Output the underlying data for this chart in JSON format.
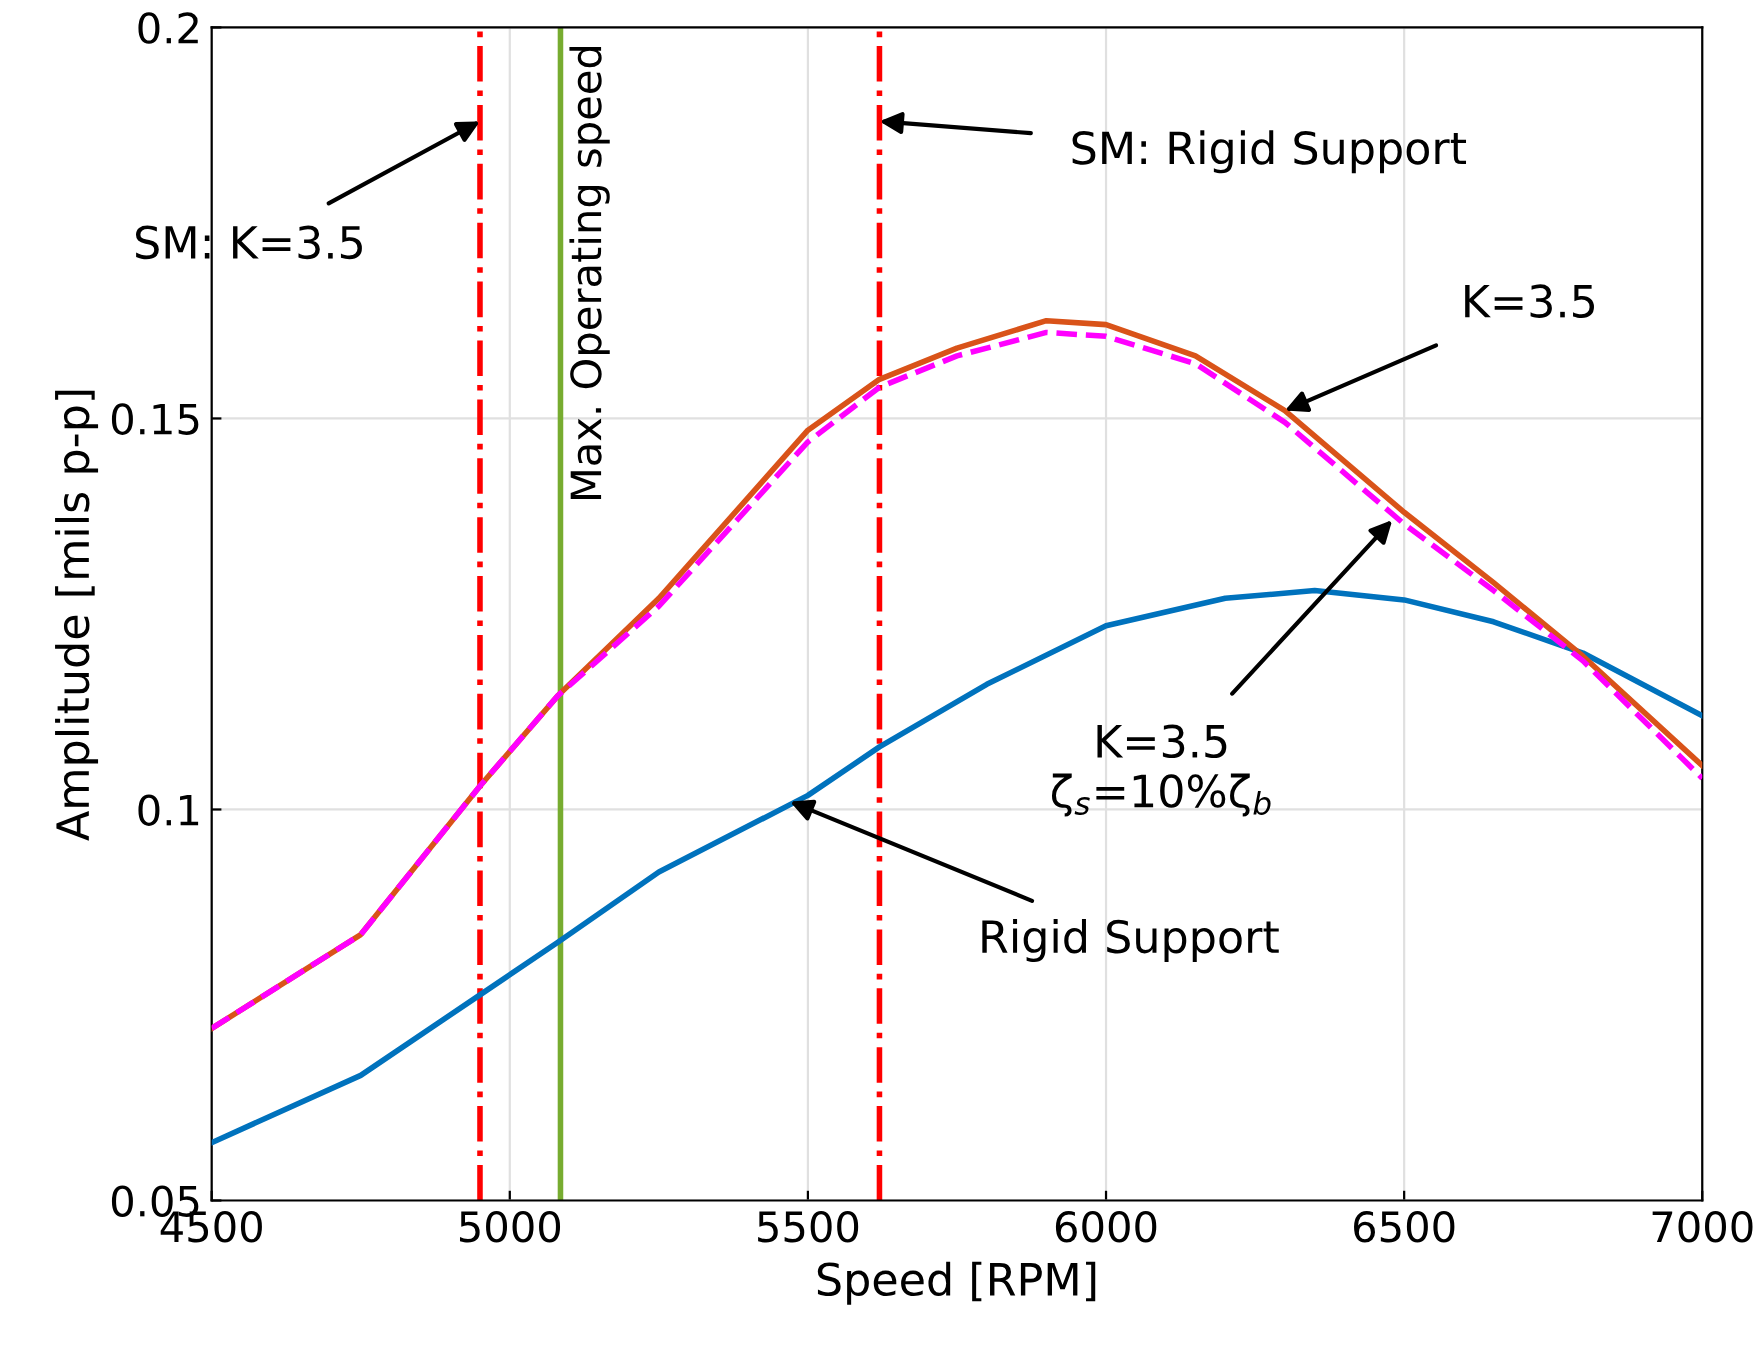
{
  "chart_data": {
    "type": "line",
    "xlabel": "Speed [RPM]",
    "ylabel": "Amplitude [mils p-p]",
    "xlim": [
      4500,
      7000
    ],
    "xticks": [
      4500,
      5000,
      5500,
      6000,
      6500,
      7000
    ],
    "ylim": [
      0.05,
      0.2
    ],
    "yticks": [
      0.05,
      0.1,
      0.15,
      0.2
    ],
    "grid": true,
    "series": [
      {
        "color": "#0072bd",
        "line_style": "solid",
        "x": [
          4500,
          4750,
          4950,
          5080,
          5250,
          5500,
          5620,
          5800,
          6000,
          6200,
          6350,
          6500,
          6650,
          6800,
          7000
        ],
        "values": [
          0.0574,
          0.066,
          0.0763,
          0.083,
          0.092,
          0.1018,
          0.108,
          0.116,
          0.1235,
          0.127,
          0.128,
          0.1268,
          0.124,
          0.12,
          0.112
        ]
      },
      {
        "color": "#ff00ff",
        "line_style": "dashed",
        "x": [
          4500,
          4750,
          4950,
          5080,
          5250,
          5500,
          5620,
          5750,
          5900,
          6000,
          6150,
          6300,
          6500,
          6650,
          6800,
          7000
        ],
        "values": [
          0.072,
          0.084,
          0.103,
          0.1145,
          0.126,
          0.147,
          0.154,
          0.158,
          0.161,
          0.1605,
          0.157,
          0.1495,
          0.1365,
          0.128,
          0.119,
          0.104
        ]
      },
      {
        "color": "#d95319",
        "line_style": "solid",
        "x": [
          4500,
          4750,
          4950,
          5080,
          5250,
          5500,
          5620,
          5750,
          5900,
          6000,
          6150,
          6300,
          6500,
          6650,
          6800,
          7000
        ],
        "values": [
          0.072,
          0.084,
          0.103,
          0.1145,
          0.127,
          0.1485,
          0.155,
          0.159,
          0.1625,
          0.162,
          0.158,
          0.151,
          0.138,
          0.129,
          0.1196,
          0.1056
        ]
      }
    ],
    "ref_lines": [
      {
        "axis": "x",
        "value": 4950,
        "label": null,
        "color": "#ff0000",
        "line_style": "dashed"
      },
      {
        "axis": "x",
        "value": 5620,
        "label": null,
        "color": "#ff0000",
        "line_style": "dashed"
      },
      {
        "axis": "x",
        "value": 5085,
        "label": "Max. Operating speed",
        "color": "#77ac30",
        "line_style": "solid"
      }
    ],
    "annotations": [
      {
        "text": "SM: K=3.5",
        "x": 4950,
        "y": 0.188
      },
      {
        "text": "SM: Rigid Support",
        "x": 5620,
        "y": 0.188
      },
      {
        "text": "K=3.5",
        "x": 6300,
        "y": 0.151
      },
      {
        "text": "K=3.5\nζ$_{s}$=10%ζ$_{b}$",
        "x": 6480,
        "y": 0.137
      },
      {
        "text": "Rigid Support",
        "x": 5470,
        "y": 0.101
      }
    ]
  }
}
